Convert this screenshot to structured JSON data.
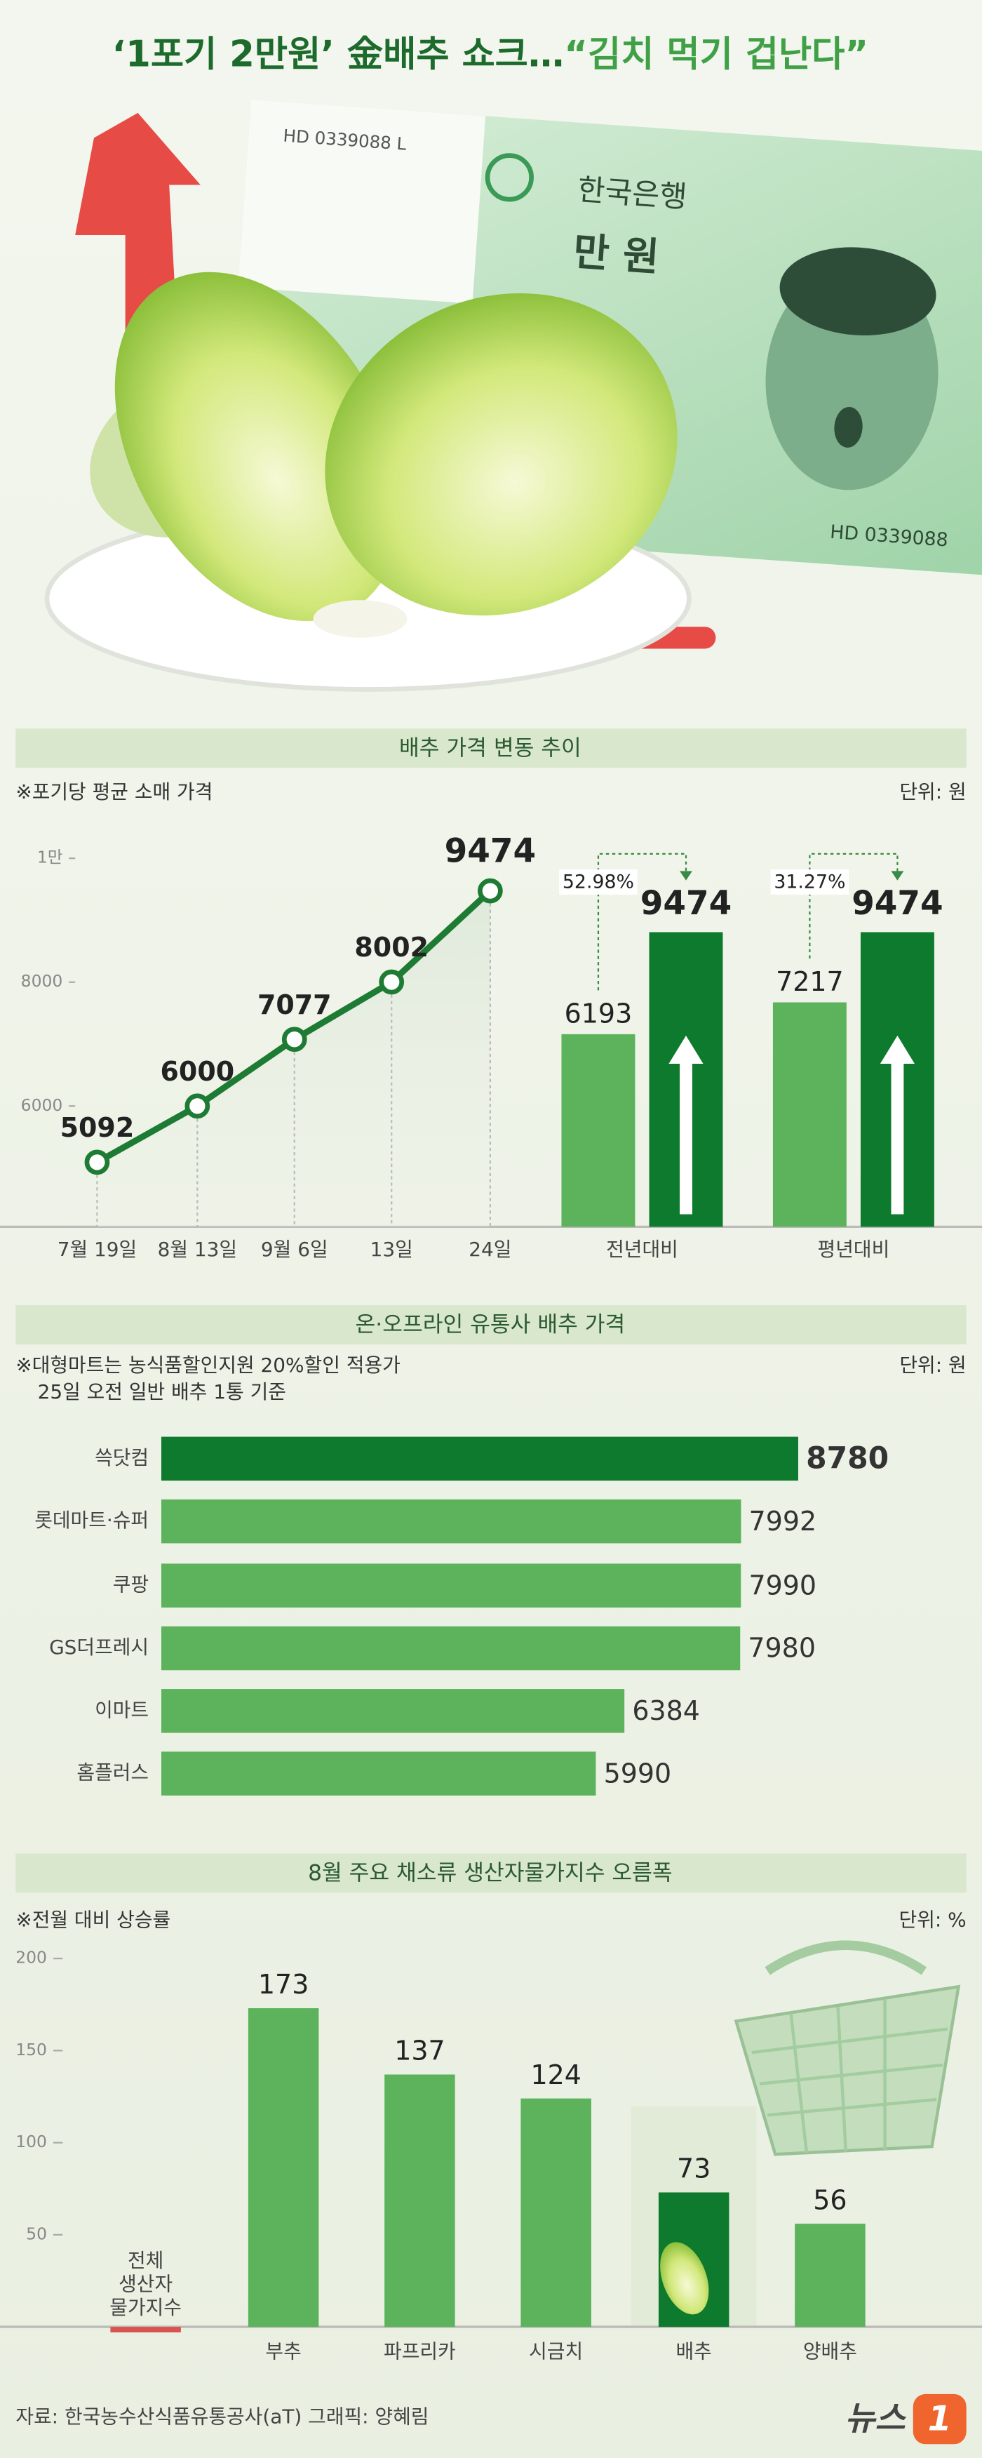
{
  "title": [
    "‘1포기 2만원’ 金배추 쇼크…",
    "“김치 먹기 겁난다”"
  ],
  "illustration": {
    "serial": "HD 0339088 L",
    "serial_back": "HD 0339088",
    "bank": "한국은행",
    "denomination": "만 원"
  },
  "chart_data": [
    {
      "type": "line",
      "title": "배추 가격 변동 추이",
      "subtitle": "※포기당 평균 소매 가격",
      "unit": "단위: 원",
      "categories": [
        "7월 19일",
        "8월 13일",
        "9월 6일",
        "13일",
        "24일"
      ],
      "values": [
        5092,
        6000,
        7077,
        8002,
        9474
      ],
      "color": "#1e7b34",
      "ylim": [
        4050,
        10450
      ],
      "yticks": [
        {
          "value": 10000,
          "label": "1만"
        },
        8000,
        6000
      ]
    },
    {
      "type": "bar",
      "categories": [
        "전년대비",
        "평년대비"
      ],
      "series": [
        {
          "color": "#5cb35c",
          "values": [
            6193,
            7217
          ]
        },
        {
          "color": "#0e7a2d",
          "values": [
            9474,
            9474
          ]
        }
      ],
      "changes": {
        "values": [
          52.98,
          31.27
        ],
        "value_labels": [
          "52.98%",
          "31.27%"
        ]
      },
      "ylim": [
        0,
        10000
      ]
    },
    {
      "type": "barh",
      "title": "온·오프라인 유통사 배추 가격",
      "subtitle": [
        "※대형마트는 농식품할인지원 20%할인 적용가",
        "25일 오전 일반 배추 1통 기준"
      ],
      "unit": "단위: 원",
      "categories": [
        "쓱닷컴",
        "롯데마트·슈퍼",
        "쿠팡",
        "GS더프레시",
        "이마트",
        "홈플러스"
      ],
      "values": [
        8780,
        7992,
        7990,
        7980,
        6384,
        5990
      ],
      "colors": [
        "#0e7a2d",
        "#5cb35c",
        "#5cb35c",
        "#5cb35c",
        "#5cb35c",
        "#5cb35c"
      ],
      "xlim": [
        0,
        9500
      ]
    },
    {
      "type": "bar",
      "title": "8월 주요 채소류 생산자물가지수 오름폭",
      "subtitle": "※전월 대비 상승률",
      "unit": "단위: %",
      "categories": [
        "전체\n생산자\n물가지수",
        "부추",
        "파프리카",
        "시금치",
        "배추",
        "양배추"
      ],
      "values": [
        -3,
        173,
        137,
        124,
        73,
        56
      ],
      "value_labels": [
        null,
        "173",
        "137",
        "124",
        "73",
        "56"
      ],
      "colors": [
        "#d9534f",
        "#5cb35c",
        "#5cb35c",
        "#5cb35c",
        "#0e7a2d",
        "#5cb35c"
      ],
      "ylim": [
        -5,
        200
      ],
      "yticks": [
        50,
        100,
        150,
        200
      ]
    }
  ],
  "source": "자료: 한국농수산식품유통공사(aT) 그래픽: 양혜림",
  "logo": {
    "name": "뉴스",
    "mark": "1"
  }
}
